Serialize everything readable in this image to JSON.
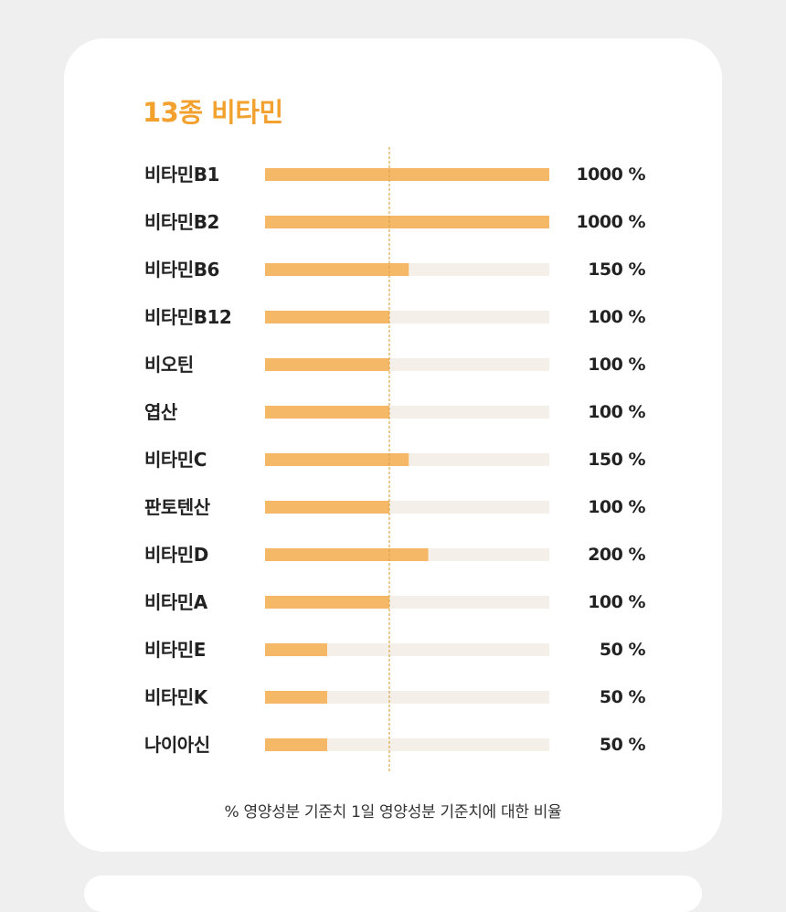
{
  "colors": {
    "background": "#efefef",
    "card": "#ffffff",
    "accent": "#f2a12e",
    "bar_fill": "#f5b866",
    "bar_track": "#f4f0e9",
    "reference_line": "#d9a64a",
    "text": "#222222"
  },
  "chart_data": {
    "type": "bar",
    "orientation": "horizontal",
    "title": "13종 비타민",
    "categories": [
      "비타민B1",
      "비타민B2",
      "비타민B6",
      "비타민B12",
      "비오틴",
      "엽산",
      "비타민C",
      "판토텐산",
      "비타민D",
      "비타민A",
      "비타민E",
      "비타민K",
      "나이아신"
    ],
    "values": [
      1000,
      1000,
      150,
      100,
      100,
      100,
      150,
      100,
      200,
      100,
      50,
      50,
      50
    ],
    "value_labels": [
      "1000 %",
      "1000 %",
      "150 %",
      "100 %",
      "100 %",
      "100 %",
      "150 %",
      "100 %",
      "200 %",
      "100 %",
      "50 %",
      "50 %",
      "50 %"
    ],
    "unit": "%",
    "reference_line": 100,
    "note": "% 영양성분 기준치 1일 영양성분 기준치에 대한 비율",
    "grid": false,
    "legend": "none"
  }
}
